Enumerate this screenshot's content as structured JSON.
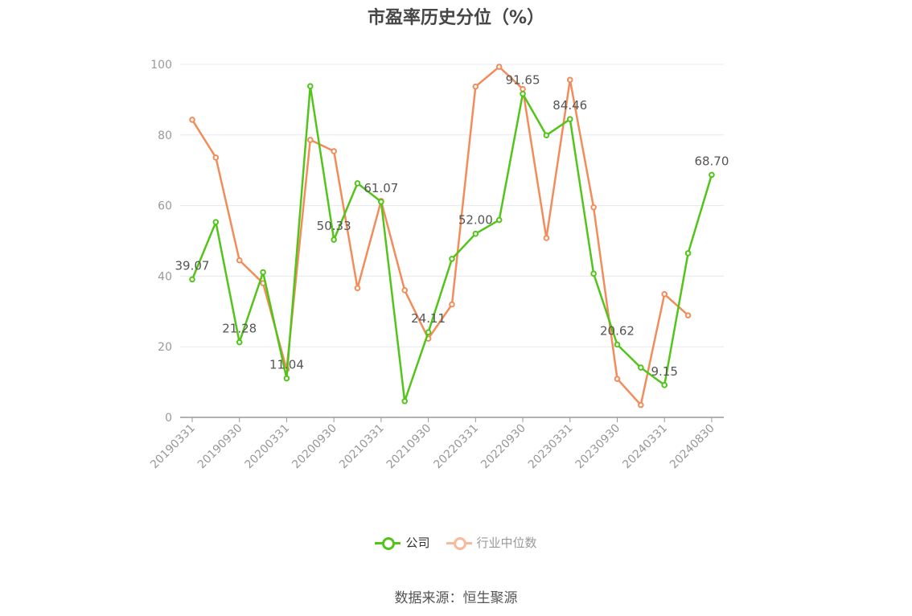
{
  "chart_data": {
    "type": "line",
    "title": "市盈率历史分位（%）",
    "x": [
      "20190331",
      "20190630",
      "20190930",
      "20191231",
      "20200331",
      "20200630",
      "20200930",
      "20201231",
      "20210331",
      "20210630",
      "20210930",
      "20211231",
      "20220331",
      "20220630",
      "20220930",
      "20221231",
      "20230331",
      "20230630",
      "20230930",
      "20231231",
      "20240331",
      "20240630",
      "20240830"
    ],
    "x_tick_labels": [
      "20190331",
      "20190930",
      "20200331",
      "20200930",
      "20210331",
      "20210930",
      "20220331",
      "20220930",
      "20230331",
      "20230930",
      "20240331",
      "20240830"
    ],
    "ylim": [
      0,
      100
    ],
    "y_ticks": [
      0,
      20,
      40,
      60,
      80,
      100
    ],
    "grid": true,
    "legend_position": "bottom",
    "series": [
      {
        "name": "公司",
        "color": "#52c41a",
        "values": [
          39.07,
          55.3,
          21.28,
          41.1,
          11.04,
          93.8,
          50.33,
          66.3,
          61.07,
          4.6,
          24.11,
          44.9,
          52.0,
          55.9,
          91.65,
          79.9,
          84.46,
          40.7,
          20.62,
          14.1,
          9.15,
          46.5,
          68.7
        ],
        "data_labels": {
          "0": "39.07",
          "2": "21.28",
          "4": "11.04",
          "6": "50.33",
          "8": "61.07",
          "10": "24.11",
          "12": "52.00",
          "14": "91.65",
          "16": "84.46",
          "18": "20.62",
          "20": "9.15",
          "22": "68.70"
        }
      },
      {
        "name": "行业中位数",
        "color": "#f28c5a",
        "values": [
          84.3,
          73.6,
          44.5,
          38.0,
          13.6,
          78.6,
          75.4,
          36.6,
          61.3,
          36.0,
          22.3,
          32.0,
          93.7,
          99.3,
          93.0,
          50.8,
          95.6,
          59.5,
          10.9,
          3.5,
          34.9,
          28.9,
          null
        ]
      }
    ]
  },
  "legend": {
    "items": [
      {
        "label": "公司",
        "color": "#52c41a"
      },
      {
        "label": "行业中位数",
        "color": "#f9b99a"
      }
    ]
  },
  "source_text": "数据来源：恒生聚源"
}
